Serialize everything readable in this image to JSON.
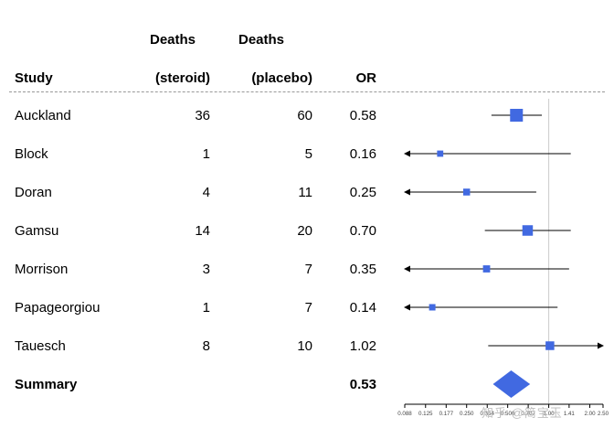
{
  "table": {
    "header": {
      "line1": {
        "deaths_steroid": "Deaths",
        "deaths_placebo": "Deaths"
      },
      "line2": {
        "study": "Study",
        "steroid": "(steroid)",
        "placebo": "(placebo)",
        "or": "OR"
      }
    },
    "rows": [
      {
        "study": "Auckland",
        "deaths_steroid": "36",
        "deaths_placebo": "60",
        "or": "0.58"
      },
      {
        "study": "Block",
        "deaths_steroid": "1",
        "deaths_placebo": "5",
        "or": "0.16"
      },
      {
        "study": "Doran",
        "deaths_steroid": "4",
        "deaths_placebo": "11",
        "or": "0.25"
      },
      {
        "study": "Gamsu",
        "deaths_steroid": "14",
        "deaths_placebo": "20",
        "or": "0.70"
      },
      {
        "study": "Morrison",
        "deaths_steroid": "3",
        "deaths_placebo": "7",
        "or": "0.35"
      },
      {
        "study": "Papageorgiou",
        "deaths_steroid": "1",
        "deaths_placebo": "7",
        "or": "0.14"
      },
      {
        "study": "Tauesch",
        "deaths_steroid": "8",
        "deaths_placebo": "10",
        "or": "1.02"
      }
    ],
    "summary_row": {
      "study": "Summary",
      "or": "0.53"
    }
  },
  "chart_data": {
    "type": "forest",
    "scale": "log",
    "axis": {
      "min": 0.088,
      "max": 2.5,
      "ticks": [
        0.088,
        0.125,
        0.177,
        0.25,
        0.354,
        0.5,
        0.707,
        1.0,
        1.41,
        2.0,
        2.5
      ],
      "tick_labels": [
        "0.088",
        "0.125",
        "0.177",
        "0.250",
        "0.354",
        "0.500",
        "0.707",
        "1.00",
        "1.41",
        "2.00",
        "2.50"
      ],
      "reference_line": 1.0
    },
    "studies": [
      {
        "name": "Auckland",
        "or": 0.58,
        "ci_low": 0.38,
        "ci_high": 0.89,
        "weight": 1.0,
        "clip_low": false,
        "clip_high": false
      },
      {
        "name": "Block",
        "or": 0.16,
        "ci_low": 0.088,
        "ci_high": 1.45,
        "weight": 0.28,
        "clip_low": true,
        "clip_high": false
      },
      {
        "name": "Doran",
        "or": 0.25,
        "ci_low": 0.088,
        "ci_high": 0.81,
        "weight": 0.35,
        "clip_low": true,
        "clip_high": false
      },
      {
        "name": "Gamsu",
        "or": 0.7,
        "ci_low": 0.34,
        "ci_high": 1.45,
        "weight": 0.75,
        "clip_low": false,
        "clip_high": false
      },
      {
        "name": "Morrison",
        "or": 0.35,
        "ci_low": 0.088,
        "ci_high": 1.41,
        "weight": 0.38,
        "clip_low": true,
        "clip_high": false
      },
      {
        "name": "Papageorgiou",
        "or": 0.14,
        "ci_low": 0.088,
        "ci_high": 1.16,
        "weight": 0.3,
        "clip_low": true,
        "clip_high": false
      },
      {
        "name": "Tauesch",
        "or": 1.02,
        "ci_low": 0.36,
        "ci_high": 2.5,
        "weight": 0.55,
        "clip_low": false,
        "clip_high": true
      }
    ],
    "summary": {
      "name": "Summary",
      "or": 0.53,
      "ci_low": 0.39,
      "ci_high": 0.73
    }
  },
  "watermark": "知乎 @简宝玉",
  "colors": {
    "box": "#4169E1",
    "diamond": "#4169E1",
    "ref_line": "#cccccc",
    "axis": "#000000",
    "tick_label": "#444444",
    "ci_line": "#000000"
  }
}
